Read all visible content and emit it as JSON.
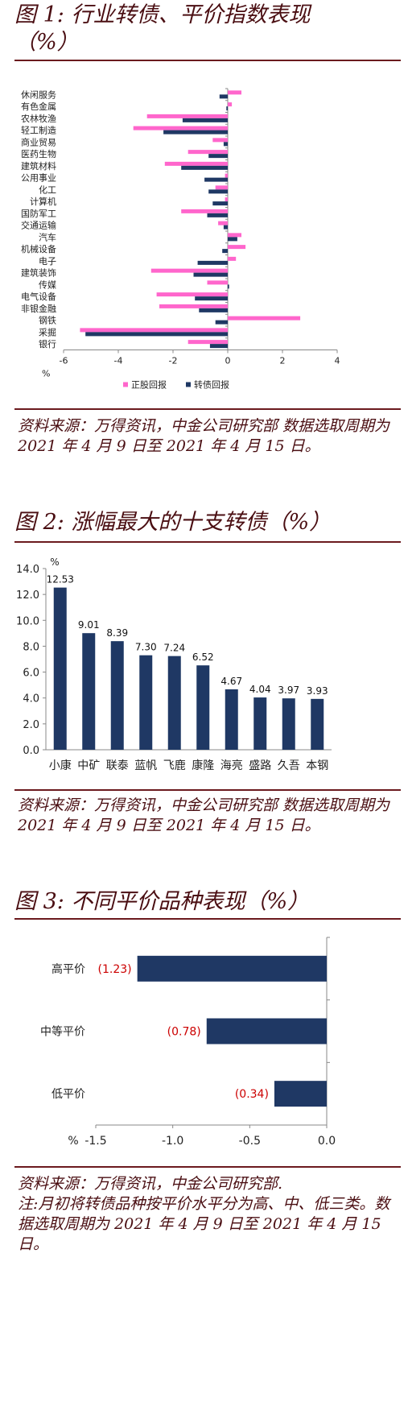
{
  "fig1": {
    "title_line1": "图 1:  行业转债、平价指数表现",
    "title_line2": "（%）",
    "source": "资料来源：万得资讯，中金公司研究部    数据选取周期为 2021 年 4 月 9 日至 2021 年 4 月 15 日。"
  },
  "fig2": {
    "title": "图 2:  涨幅最大的十支转债（%）",
    "source": "资料来源：万得资讯，中金公司研究部    数据选取周期为 2021 年 4 月 9 日至 2021 年 4 月 15 日。"
  },
  "fig3": {
    "title": "图 3:  不同平价品种表现（%）",
    "source_line1": "资料来源：万得资讯，中金公司研究部.",
    "source_line2": "注:月初将转债品种按平价水平分为高、中、低三类。数据选取周期为 2021 年 4 月 9 日至 2021 年 4 月 15 日。"
  },
  "colors": {
    "navy": "#1f3864",
    "pink": "#ff66cc",
    "red_label": "#cc0000",
    "rule": "#6b1a1e"
  },
  "chart_data": [
    {
      "type": "bar",
      "orientation": "horizontal",
      "categories": [
        "休闲服务",
        "有色金属",
        "农林牧渔",
        "轻工制造",
        "商业贸易",
        "医药生物",
        "建筑材料",
        "公用事业",
        "化工",
        "计算机",
        "国防军工",
        "交通运输",
        "汽车",
        "机械设备",
        "电子",
        "建筑装饰",
        "传媒",
        "电气设备",
        "非银金融",
        "钢铁",
        "采掘",
        "银行"
      ],
      "series": [
        {
          "name": "正股回报",
          "color": "#ff66cc",
          "values": [
            0.5,
            0.15,
            -2.95,
            -3.45,
            -0.55,
            -1.45,
            -2.3,
            -0.1,
            -0.45,
            -0.1,
            -1.7,
            -0.35,
            0.5,
            0.65,
            0.3,
            -2.8,
            -0.75,
            -2.6,
            -2.5,
            2.65,
            -5.4,
            -1.45
          ]
        },
        {
          "name": "转债回报",
          "color": "#1f3864",
          "values": [
            -0.3,
            -0.05,
            -1.65,
            -2.35,
            -0.15,
            -0.7,
            -1.7,
            -0.85,
            -0.7,
            -0.55,
            -0.75,
            -0.15,
            0.35,
            -0.2,
            -1.1,
            -1.25,
            0.05,
            -1.2,
            -1.05,
            -0.45,
            -5.2,
            -0.65
          ]
        }
      ],
      "xlim": [
        -6,
        4
      ],
      "xticks": [
        "-6",
        "-4",
        "-2",
        "0",
        "2",
        "4"
      ],
      "unit_label": "%",
      "legend_position": "bottom"
    },
    {
      "type": "bar",
      "categories": [
        "小康",
        "中矿",
        "联泰",
        "蓝帆",
        "飞鹿",
        "康隆",
        "海亮",
        "盛路",
        "久吾",
        "本钢"
      ],
      "values": [
        12.53,
        9.01,
        8.39,
        7.3,
        7.24,
        6.52,
        4.67,
        4.04,
        3.97,
        3.93
      ],
      "value_labels": [
        "12.53",
        "9.01",
        "8.39",
        "7.30",
        "7.24",
        "6.52",
        "4.67",
        "4.04",
        "3.97",
        "3.93"
      ],
      "ylim": [
        0,
        14
      ],
      "yticks": [
        "0.0",
        "2.0",
        "4.0",
        "6.0",
        "8.0",
        "10.0",
        "12.0",
        "14.0"
      ],
      "unit_label": "%",
      "color": "#1f3864"
    },
    {
      "type": "bar",
      "orientation": "horizontal",
      "categories": [
        "高平价",
        "中等平价",
        "低平价"
      ],
      "values": [
        -1.23,
        -0.78,
        -0.34
      ],
      "value_labels": [
        "(1.23)",
        "(0.78)",
        "(0.34)"
      ],
      "xlim": [
        -1.5,
        0
      ],
      "xticks": [
        "-1.5",
        "-1.0",
        "-0.5",
        "0.0"
      ],
      "unit_label": "%",
      "color": "#1f3864"
    }
  ]
}
